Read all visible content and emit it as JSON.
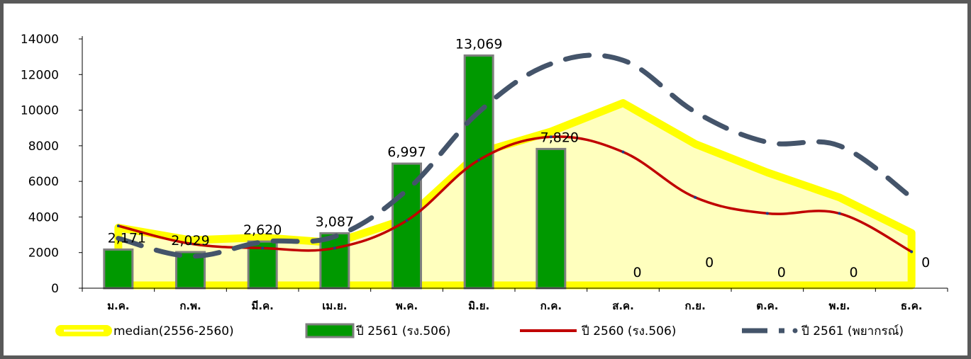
{
  "chart_data": {
    "type": "bar",
    "categories": [
      "ม.ค.",
      "ก.พ.",
      "มี.ค.",
      "เม.ย.",
      "พ.ค.",
      "มิ.ย.",
      "ก.ค.",
      "ส.ค.",
      "ก.ย.",
      "ต.ค.",
      "พ.ย.",
      "ธ.ค."
    ],
    "ylim": [
      0,
      14000
    ],
    "yticks": [
      0,
      2000,
      4000,
      6000,
      8000,
      10000,
      12000,
      14000
    ],
    "grid": false,
    "legend_position": "bottom",
    "series": [
      {
        "name": "median(2556-2560)",
        "type": "area",
        "color": "#ffff00",
        "fill": "#ffffb3",
        "values": [
          3400,
          2700,
          2850,
          2550,
          3900,
          7600,
          8800,
          10400,
          8100,
          6500,
          5100,
          3100
        ]
      },
      {
        "name": "ปี 2561 (รง.506)",
        "type": "bar",
        "color": "#009900",
        "border": "#7f7f7f",
        "values": [
          2171,
          2029,
          2620,
          3087,
          6997,
          13069,
          7820,
          0,
          0,
          0,
          0,
          0
        ],
        "labels": [
          "2,171",
          "2,029",
          "2,620",
          "3,087",
          "6,997",
          "13,069",
          "7,820",
          "0",
          "0",
          "0",
          "0",
          "0"
        ]
      },
      {
        "name": "ปี 2560 (รง.506)",
        "type": "line",
        "color": "#c00000",
        "values": [
          3500,
          2500,
          2250,
          2250,
          3800,
          7200,
          8500,
          7650,
          5100,
          4200,
          4200,
          2050
        ]
      },
      {
        "name": "ปี 2561 (พยากรณ์)",
        "type": "line-dashed",
        "color": "#44546a",
        "values": [
          2800,
          1800,
          2600,
          2900,
          5500,
          9900,
          12600,
          12800,
          9900,
          8200,
          8000,
          5100
        ]
      }
    ]
  }
}
